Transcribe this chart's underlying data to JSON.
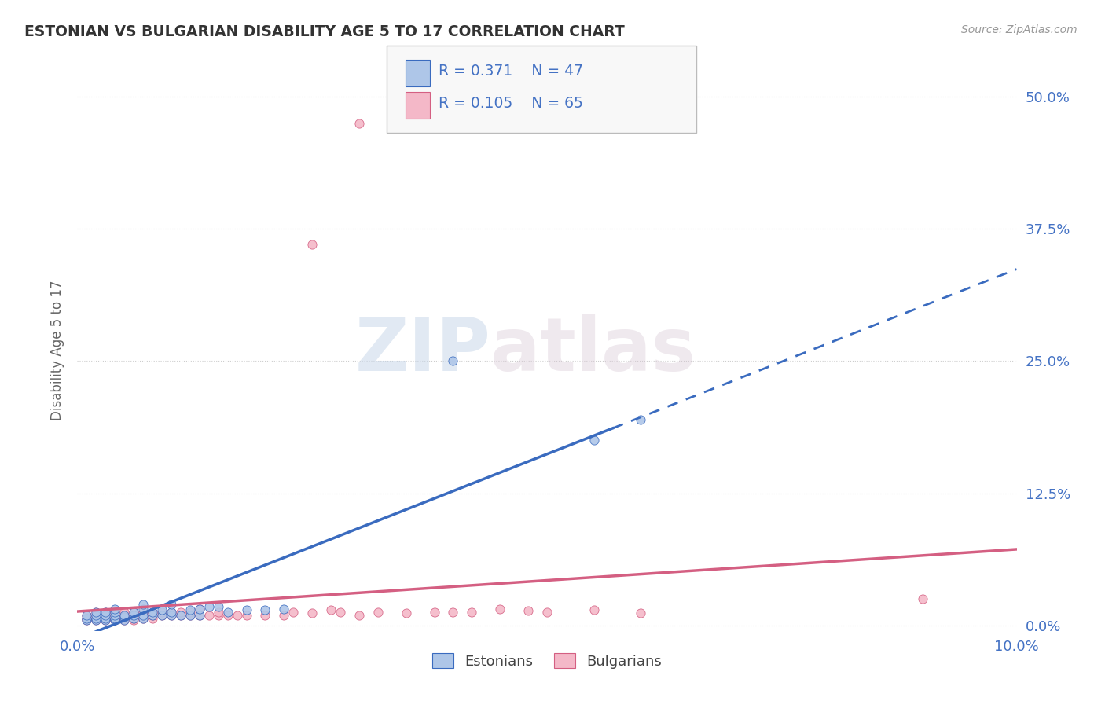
{
  "title": "ESTONIAN VS BULGARIAN DISABILITY AGE 5 TO 17 CORRELATION CHART",
  "source_text": "Source: ZipAtlas.com",
  "ylabel": "Disability Age 5 to 17",
  "xlim": [
    0.0,
    0.1
  ],
  "ylim": [
    -0.005,
    0.525
  ],
  "xticks": [
    0.0,
    0.02,
    0.04,
    0.06,
    0.08,
    0.1
  ],
  "xtick_labels": [
    "0.0%",
    "",
    "",
    "",
    "",
    "10.0%"
  ],
  "ytick_labels": [
    "0.0%",
    "12.5%",
    "25.0%",
    "37.5%",
    "50.0%"
  ],
  "yticks": [
    0.0,
    0.125,
    0.25,
    0.375,
    0.5
  ],
  "legend_labels": [
    "Estonians",
    "Bulgarians"
  ],
  "legend_r": [
    "R = 0.371",
    "R = 0.105"
  ],
  "legend_n": [
    "N = 47",
    "N = 65"
  ],
  "estonian_color": "#aec6e8",
  "bulgarian_color": "#f4b8c8",
  "estonian_line_color": "#3a6bbf",
  "bulgarian_line_color": "#d45f82",
  "estonian_scatter": [
    [
      0.001,
      0.005
    ],
    [
      0.001,
      0.007
    ],
    [
      0.001,
      0.01
    ],
    [
      0.002,
      0.005
    ],
    [
      0.002,
      0.007
    ],
    [
      0.002,
      0.01
    ],
    [
      0.002,
      0.013
    ],
    [
      0.003,
      0.005
    ],
    [
      0.003,
      0.007
    ],
    [
      0.003,
      0.01
    ],
    [
      0.003,
      0.013
    ],
    [
      0.004,
      0.005
    ],
    [
      0.004,
      0.007
    ],
    [
      0.004,
      0.01
    ],
    [
      0.004,
      0.013
    ],
    [
      0.004,
      0.016
    ],
    [
      0.005,
      0.005
    ],
    [
      0.005,
      0.008
    ],
    [
      0.005,
      0.01
    ],
    [
      0.006,
      0.007
    ],
    [
      0.006,
      0.01
    ],
    [
      0.006,
      0.013
    ],
    [
      0.007,
      0.007
    ],
    [
      0.007,
      0.01
    ],
    [
      0.007,
      0.016
    ],
    [
      0.007,
      0.02
    ],
    [
      0.008,
      0.01
    ],
    [
      0.008,
      0.013
    ],
    [
      0.009,
      0.01
    ],
    [
      0.009,
      0.015
    ],
    [
      0.01,
      0.01
    ],
    [
      0.01,
      0.013
    ],
    [
      0.01,
      0.02
    ],
    [
      0.011,
      0.01
    ],
    [
      0.012,
      0.01
    ],
    [
      0.012,
      0.015
    ],
    [
      0.013,
      0.01
    ],
    [
      0.013,
      0.016
    ],
    [
      0.014,
      0.018
    ],
    [
      0.015,
      0.018
    ],
    [
      0.016,
      0.013
    ],
    [
      0.018,
      0.015
    ],
    [
      0.02,
      0.015
    ],
    [
      0.022,
      0.016
    ],
    [
      0.04,
      0.25
    ],
    [
      0.055,
      0.175
    ],
    [
      0.06,
      0.195
    ]
  ],
  "bulgarian_scatter": [
    [
      0.001,
      0.005
    ],
    [
      0.001,
      0.007
    ],
    [
      0.001,
      0.01
    ],
    [
      0.002,
      0.005
    ],
    [
      0.002,
      0.007
    ],
    [
      0.002,
      0.01
    ],
    [
      0.002,
      0.013
    ],
    [
      0.003,
      0.005
    ],
    [
      0.003,
      0.007
    ],
    [
      0.003,
      0.01
    ],
    [
      0.003,
      0.013
    ],
    [
      0.004,
      0.005
    ],
    [
      0.004,
      0.007
    ],
    [
      0.004,
      0.01
    ],
    [
      0.004,
      0.013
    ],
    [
      0.005,
      0.005
    ],
    [
      0.005,
      0.007
    ],
    [
      0.005,
      0.01
    ],
    [
      0.005,
      0.013
    ],
    [
      0.006,
      0.005
    ],
    [
      0.006,
      0.007
    ],
    [
      0.006,
      0.01
    ],
    [
      0.006,
      0.013
    ],
    [
      0.007,
      0.007
    ],
    [
      0.007,
      0.01
    ],
    [
      0.007,
      0.013
    ],
    [
      0.008,
      0.007
    ],
    [
      0.008,
      0.01
    ],
    [
      0.008,
      0.013
    ],
    [
      0.009,
      0.01
    ],
    [
      0.009,
      0.013
    ],
    [
      0.01,
      0.01
    ],
    [
      0.01,
      0.013
    ],
    [
      0.011,
      0.01
    ],
    [
      0.011,
      0.013
    ],
    [
      0.012,
      0.01
    ],
    [
      0.012,
      0.013
    ],
    [
      0.013,
      0.01
    ],
    [
      0.013,
      0.016
    ],
    [
      0.014,
      0.01
    ],
    [
      0.015,
      0.01
    ],
    [
      0.015,
      0.013
    ],
    [
      0.016,
      0.01
    ],
    [
      0.017,
      0.01
    ],
    [
      0.018,
      0.01
    ],
    [
      0.02,
      0.01
    ],
    [
      0.022,
      0.01
    ],
    [
      0.023,
      0.013
    ],
    [
      0.025,
      0.012
    ],
    [
      0.027,
      0.015
    ],
    [
      0.028,
      0.013
    ],
    [
      0.03,
      0.01
    ],
    [
      0.032,
      0.013
    ],
    [
      0.035,
      0.012
    ],
    [
      0.038,
      0.013
    ],
    [
      0.04,
      0.013
    ],
    [
      0.042,
      0.013
    ],
    [
      0.045,
      0.016
    ],
    [
      0.048,
      0.014
    ],
    [
      0.05,
      0.013
    ],
    [
      0.055,
      0.015
    ],
    [
      0.06,
      0.012
    ],
    [
      0.025,
      0.36
    ],
    [
      0.03,
      0.475
    ],
    [
      0.09,
      0.025
    ]
  ],
  "watermark_zip": "ZIP",
  "watermark_atlas": "atlas",
  "background_color": "#ffffff",
  "grid_color": "#c8c8c8",
  "title_color": "#333333",
  "axis_label_color": "#4472c4",
  "ylabel_color": "#666666"
}
